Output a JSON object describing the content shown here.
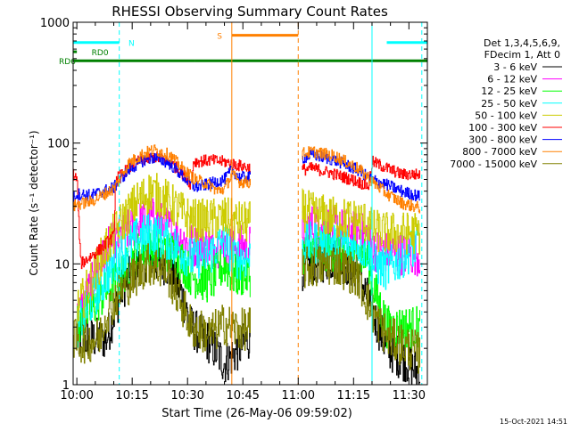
{
  "chart_data": {
    "type": "line",
    "title": "RHESSI Observing Summary Count Rates",
    "xlabel": "Start Time (26-May-06 09:59:02)",
    "ylabel": "Count Rate (s⁻¹ detector⁻¹)",
    "yscale": "log",
    "ylim": [
      1,
      1000
    ],
    "xlim_minutes_after_1000": [
      -1,
      95
    ],
    "x_ticks": [
      "10:00",
      "10:15",
      "10:30",
      "10:45",
      "11:00",
      "11:15",
      "11:30"
    ],
    "y_ticks": [
      "1",
      "10",
      "100",
      "1000"
    ],
    "timestamp": "15-Oct-2021 14:51",
    "legend": {
      "position": "right",
      "header": [
        "Det 1,3,4,5,6,9,",
        "FDecim 1, Att 0"
      ]
    },
    "flag_labels": {
      "N": "N",
      "S": "S",
      "RD0": "RD0",
      "RD6": "RD6"
    },
    "flags": {
      "N": {
        "color": "#00ffff",
        "value": 680,
        "intervals": [
          [
            -1,
            11.5
          ],
          [
            84,
            95
          ]
        ]
      },
      "S": {
        "color": "#ff8000",
        "value": 780,
        "intervals": [
          [
            42,
            60
          ]
        ]
      },
      "RD0": {
        "color": "#008000",
        "value": 570,
        "intervals": [
          [
            -1,
            0
          ]
        ]
      },
      "RD6": {
        "color": "#008000",
        "value": 480,
        "intervals": [
          [
            -1,
            32
          ],
          [
            32,
            60
          ],
          [
            60,
            80
          ],
          [
            80,
            95
          ]
        ]
      }
    },
    "vlines": [
      {
        "t": 11.5,
        "color": "#00ffff",
        "style": "dashed"
      },
      {
        "t": 42,
        "color": "#ff8000",
        "style": "solid"
      },
      {
        "t": 60,
        "color": "#ff8000",
        "style": "dashed"
      },
      {
        "t": 80,
        "color": "#00ffff",
        "style": "solid"
      },
      {
        "t": 93.5,
        "color": "#00ffff",
        "style": "dashed"
      }
    ],
    "segments": [
      [
        -1,
        47
      ],
      [
        61,
        93
      ]
    ],
    "series": [
      {
        "name": "3 - 6 keV",
        "color": "#000000",
        "knots": [
          [
            0,
            2.4
          ],
          [
            8,
            2.4
          ],
          [
            12,
            6
          ],
          [
            16,
            9.5
          ],
          [
            19,
            11
          ],
          [
            24,
            10
          ],
          [
            28,
            6
          ],
          [
            31,
            3
          ],
          [
            36,
            2.2
          ],
          [
            40,
            1.5
          ],
          [
            44,
            2
          ],
          [
            47,
            2.5
          ]
        ],
        "knots2": [
          [
            61,
            9
          ],
          [
            64,
            10
          ],
          [
            70,
            11
          ],
          [
            76,
            9
          ],
          [
            80,
            4
          ],
          [
            84,
            2
          ],
          [
            90,
            1.5
          ],
          [
            93,
            1.2
          ]
        ]
      },
      {
        "name": "6 - 12 keV",
        "color": "#ff00ff",
        "knots": [
          [
            0,
            3.5
          ],
          [
            8,
            13
          ],
          [
            10,
            15
          ],
          [
            14,
            19
          ],
          [
            17,
            22
          ],
          [
            20,
            24
          ],
          [
            24,
            21
          ],
          [
            27,
            17
          ],
          [
            30,
            15
          ],
          [
            32,
            14
          ],
          [
            40,
            14
          ],
          [
            44,
            14
          ],
          [
            47,
            14
          ]
        ],
        "knots2": [
          [
            61,
            19
          ],
          [
            64,
            21
          ],
          [
            70,
            20
          ],
          [
            76,
            18
          ],
          [
            79,
            17
          ],
          [
            80,
            13
          ],
          [
            88,
            12
          ],
          [
            93,
            12
          ]
        ]
      },
      {
        "name": "12 - 25 keV",
        "color": "#00ff00",
        "knots": [
          [
            0,
            3
          ],
          [
            8,
            6
          ],
          [
            12,
            8
          ],
          [
            16,
            12
          ],
          [
            20,
            14
          ],
          [
            24,
            13
          ],
          [
            28,
            11
          ],
          [
            31,
            8
          ],
          [
            36,
            7
          ],
          [
            40,
            10
          ],
          [
            42,
            8
          ],
          [
            44,
            8
          ],
          [
            47,
            8
          ]
        ],
        "knots2": [
          [
            61,
            12
          ],
          [
            64,
            13
          ],
          [
            70,
            13
          ],
          [
            76,
            12
          ],
          [
            79,
            11
          ],
          [
            80,
            7
          ],
          [
            84,
            3
          ],
          [
            93,
            3
          ]
        ]
      },
      {
        "name": "25 - 50 keV",
        "color": "#00ffff",
        "knots": [
          [
            0,
            3
          ],
          [
            8,
            8
          ],
          [
            12,
            12
          ],
          [
            16,
            16
          ],
          [
            20,
            18
          ],
          [
            24,
            16
          ],
          [
            28,
            13
          ],
          [
            31,
            11
          ],
          [
            36,
            12
          ],
          [
            40,
            16
          ],
          [
            42,
            12
          ],
          [
            44,
            11
          ],
          [
            47,
            11
          ]
        ],
        "knots2": [
          [
            61,
            14
          ],
          [
            64,
            15
          ],
          [
            70,
            15
          ],
          [
            76,
            14
          ],
          [
            79,
            13
          ],
          [
            80,
            10
          ],
          [
            84,
            9
          ],
          [
            93,
            15
          ]
        ]
      },
      {
        "name": "50 - 100 keV",
        "color": "#cccc00",
        "knots": [
          [
            0,
            4
          ],
          [
            8,
            14
          ],
          [
            12,
            22
          ],
          [
            16,
            32
          ],
          [
            20,
            40
          ],
          [
            24,
            34
          ],
          [
            28,
            27
          ],
          [
            31,
            23
          ],
          [
            36,
            23
          ],
          [
            40,
            24
          ],
          [
            42,
            23
          ],
          [
            44,
            22
          ],
          [
            47,
            22
          ]
        ],
        "knots2": [
          [
            61,
            28
          ],
          [
            64,
            26
          ],
          [
            70,
            24
          ],
          [
            76,
            23
          ],
          [
            79,
            22
          ],
          [
            80,
            19
          ],
          [
            84,
            18
          ],
          [
            93,
            18
          ]
        ]
      },
      {
        "name": "100 - 300 keV",
        "color": "#ff0000",
        "knots": [
          [
            -1,
            55
          ],
          [
            0,
            50
          ],
          [
            1,
            10
          ],
          [
            6,
            13
          ],
          [
            10,
            17
          ],
          [
            10.5,
            50
          ],
          [
            14,
            62
          ],
          [
            17,
            72
          ],
          [
            21,
            77
          ],
          [
            25,
            70
          ],
          [
            29,
            55
          ],
          [
            31,
            45
          ],
          [
            31.5,
            70
          ],
          [
            36,
            72
          ],
          [
            40,
            70
          ],
          [
            44,
            65
          ],
          [
            47,
            62
          ]
        ],
        "knots2": [
          [
            61,
            60
          ],
          [
            64,
            62
          ],
          [
            70,
            55
          ],
          [
            76,
            48
          ],
          [
            79,
            44
          ],
          [
            80,
            70
          ],
          [
            84,
            62
          ],
          [
            88,
            55
          ],
          [
            93,
            55
          ]
        ]
      },
      {
        "name": "300 - 800 keV",
        "color": "#0000ff",
        "knots": [
          [
            -1,
            35
          ],
          [
            0,
            38
          ],
          [
            4,
            37
          ],
          [
            10,
            43
          ],
          [
            14,
            60
          ],
          [
            18,
            72
          ],
          [
            21,
            76
          ],
          [
            25,
            68
          ],
          [
            29,
            52
          ],
          [
            31,
            45
          ],
          [
            32,
            43
          ],
          [
            36,
            46
          ],
          [
            40,
            50
          ],
          [
            42,
            60
          ],
          [
            44,
            52
          ],
          [
            47,
            52
          ]
        ],
        "knots2": [
          [
            61,
            75
          ],
          [
            64,
            80
          ],
          [
            70,
            72
          ],
          [
            76,
            60
          ],
          [
            79,
            52
          ],
          [
            80,
            50
          ],
          [
            84,
            45
          ],
          [
            88,
            40
          ],
          [
            93,
            36
          ]
        ]
      },
      {
        "name": "800 - 7000 keV",
        "color": "#ff8000",
        "knots": [
          [
            -1,
            30
          ],
          [
            0,
            31
          ],
          [
            4,
            33
          ],
          [
            10,
            42
          ],
          [
            14,
            68
          ],
          [
            18,
            82
          ],
          [
            21,
            88
          ],
          [
            25,
            80
          ],
          [
            29,
            60
          ],
          [
            32,
            50
          ],
          [
            36,
            45
          ],
          [
            38,
            40
          ],
          [
            40,
            42
          ],
          [
            42,
            55
          ],
          [
            44,
            48
          ],
          [
            47,
            47
          ]
        ],
        "knots2": [
          [
            61,
            82
          ],
          [
            64,
            85
          ],
          [
            70,
            78
          ],
          [
            76,
            62
          ],
          [
            79,
            52
          ],
          [
            80,
            48
          ],
          [
            84,
            38
          ],
          [
            88,
            32
          ],
          [
            93,
            29
          ]
        ]
      },
      {
        "name": "7000 - 15000 keV",
        "color": "#808000",
        "knots": [
          [
            -1,
            2.5
          ],
          [
            0,
            2.2
          ],
          [
            6,
            2.4
          ],
          [
            8,
            4
          ],
          [
            12,
            6
          ],
          [
            16,
            8
          ],
          [
            19,
            10
          ],
          [
            24,
            9
          ],
          [
            28,
            5
          ],
          [
            31,
            3
          ],
          [
            36,
            2.6
          ],
          [
            40,
            3.2
          ],
          [
            44,
            2.8
          ],
          [
            47,
            3
          ]
        ],
        "knots2": [
          [
            61,
            9
          ],
          [
            64,
            9.5
          ],
          [
            70,
            10
          ],
          [
            76,
            8
          ],
          [
            80,
            4
          ],
          [
            84,
            2.5
          ],
          [
            90,
            2
          ],
          [
            93,
            1.8
          ]
        ]
      }
    ]
  }
}
